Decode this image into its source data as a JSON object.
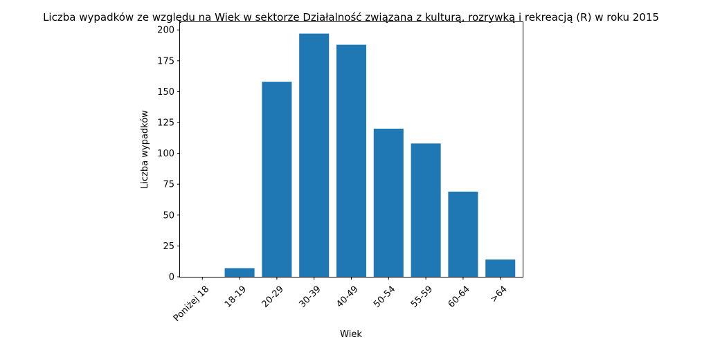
{
  "chart_data": {
    "type": "bar",
    "title": "Liczba wypadków ze względu na Wiek w sektorze Działalność związana z kulturą, rozrywką i rekreacją (R) w roku 2015",
    "xlabel": "Wiek",
    "ylabel": "Liczba wypadków",
    "categories": [
      "Poniżej 18",
      "18-19",
      "20-29",
      "30-39",
      "40-49",
      "50-54",
      "55-59",
      "60-64",
      ">64"
    ],
    "values": [
      0,
      7,
      158,
      197,
      188,
      120,
      108,
      69,
      14
    ],
    "ylim": [
      0,
      206.85
    ],
    "yticks": [
      0,
      25,
      50,
      75,
      100,
      125,
      150,
      175,
      200
    ],
    "bar_color": "#1f77b4",
    "grid": false
  }
}
